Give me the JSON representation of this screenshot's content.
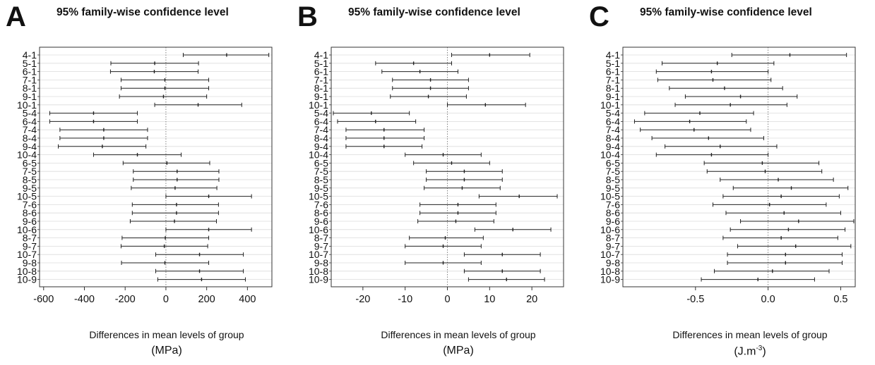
{
  "chart_data": [
    {
      "type": "interval",
      "panel_label": "A",
      "title": "95% family-wise confidence level",
      "xlabel": "Differences in mean levels of group",
      "xunit": "(MPa)",
      "xlim": [
        -620,
        520
      ],
      "xticks": [
        "-600",
        "-400",
        "-200",
        "0",
        "200",
        "400"
      ],
      "categories": [
        "4-1",
        "5-1",
        "6-1",
        "7-1",
        "8-1",
        "9-1",
        "10-1",
        "5-4",
        "6-4",
        "7-4",
        "8-4",
        "9-4",
        "10-4",
        "6-5",
        "7-5",
        "8-5",
        "9-5",
        "10-5",
        "7-6",
        "8-6",
        "9-6",
        "10-6",
        "8-7",
        "9-7",
        "10-7",
        "9-8",
        "10-8",
        "10-9"
      ],
      "lower": [
        85,
        -270,
        -272,
        -220,
        -220,
        -228,
        -55,
        -570,
        -570,
        -520,
        -520,
        -528,
        -355,
        -210,
        -160,
        -160,
        -170,
        0,
        -165,
        -165,
        -175,
        0,
        -215,
        -220,
        -50,
        -218,
        -50,
        -40
      ],
      "estimate": [
        298,
        -55,
        -57,
        -5,
        -5,
        -12,
        158,
        -355,
        -355,
        -305,
        -305,
        -312,
        -140,
        5,
        55,
        55,
        45,
        210,
        52,
        52,
        42,
        210,
        -3,
        -8,
        165,
        -5,
        165,
        175
      ],
      "upper": [
        505,
        160,
        158,
        210,
        210,
        200,
        372,
        -140,
        -140,
        -90,
        -90,
        -98,
        75,
        215,
        260,
        260,
        250,
        420,
        258,
        258,
        248,
        420,
        210,
        205,
        380,
        210,
        380,
        390
      ]
    },
    {
      "type": "interval",
      "panel_label": "B",
      "title": "95% family-wise confidence level",
      "xlabel": "Differences in mean levels of group",
      "xunit": "(MPa)",
      "xlim": [
        -27.5,
        27.5
      ],
      "xticks": [
        "-20",
        "-10",
        "0",
        "10",
        "20"
      ],
      "categories": [
        "4-1",
        "5-1",
        "6-1",
        "7-1",
        "8-1",
        "9-1",
        "10-1",
        "5-4",
        "6-4",
        "7-4",
        "8-4",
        "9-4",
        "10-4",
        "6-5",
        "7-5",
        "8-5",
        "9-5",
        "10-5",
        "7-6",
        "8-6",
        "9-6",
        "10-6",
        "8-7",
        "9-7",
        "10-7",
        "9-8",
        "10-8",
        "10-9"
      ],
      "lower": [
        1,
        -17,
        -15.5,
        -13,
        -13,
        -13.5,
        0,
        -27,
        -26,
        -24,
        -24,
        -24,
        -10,
        -8,
        -5,
        -5,
        -5.5,
        7.5,
        -6.5,
        -6.5,
        -7,
        6.5,
        -9,
        -10,
        4,
        -10,
        4,
        5
      ],
      "estimate": [
        10,
        -8,
        -6.5,
        -4,
        -4,
        -4.5,
        9,
        -18,
        -17,
        -15,
        -15,
        -15,
        -1,
        1,
        4,
        4,
        3.5,
        17,
        2.5,
        2.5,
        2,
        15.5,
        -0.5,
        -1,
        13,
        -1,
        13,
        14
      ],
      "upper": [
        19.5,
        1,
        2.5,
        5,
        5,
        4.5,
        18.5,
        -9,
        -7.5,
        -5.5,
        -5.5,
        -6,
        8,
        10,
        13,
        13,
        12.5,
        26,
        11.5,
        11.5,
        11,
        24.5,
        8.5,
        8,
        22,
        8,
        22,
        23
      ]
    },
    {
      "type": "interval",
      "panel_label": "C",
      "title": "95% family-wise confidence level",
      "xlabel": "Differences in mean levels of group",
      "xunit": "(J.m",
      "xunit_sup": "-3",
      "xunit_end": ")",
      "xlim": [
        -1.0,
        0.6
      ],
      "xticks": [
        "-0.5",
        "0.0",
        "0.5"
      ],
      "categories": [
        "4-1",
        "5-1",
        "6-1",
        "7-1",
        "8-1",
        "9-1",
        "10-1",
        "5-4",
        "6-4",
        "7-4",
        "8-4",
        "9-4",
        "10-4",
        "6-5",
        "7-5",
        "8-5",
        "9-5",
        "10-5",
        "7-6",
        "8-6",
        "9-6",
        "10-6",
        "8-7",
        "9-7",
        "10-7",
        "9-8",
        "10-8",
        "10-9"
      ],
      "lower": [
        -0.25,
        -0.73,
        -0.77,
        -0.76,
        -0.68,
        -0.57,
        -0.64,
        -0.85,
        -0.92,
        -0.88,
        -0.8,
        -0.71,
        -0.77,
        -0.44,
        -0.42,
        -0.33,
        -0.24,
        -0.31,
        -0.38,
        -0.29,
        -0.19,
        -0.26,
        -0.31,
        -0.21,
        -0.28,
        -0.28,
        -0.37,
        -0.46
      ],
      "estimate": [
        0.15,
        -0.35,
        -0.39,
        -0.38,
        -0.3,
        -0.19,
        -0.26,
        -0.47,
        -0.54,
        -0.51,
        -0.41,
        -0.33,
        -0.39,
        -0.04,
        -0.02,
        0.07,
        0.16,
        0.09,
        0.01,
        0.11,
        0.21,
        0.14,
        0.09,
        0.19,
        0.12,
        0.12,
        0.03,
        -0.07
      ],
      "upper": [
        0.54,
        0.04,
        0.0,
        0.02,
        0.1,
        0.2,
        0.13,
        -0.1,
        -0.15,
        -0.12,
        -0.03,
        0.06,
        0.0,
        0.35,
        0.37,
        0.45,
        0.55,
        0.49,
        0.4,
        0.5,
        0.59,
        0.53,
        0.48,
        0.57,
        0.51,
        0.51,
        0.42,
        0.32
      ]
    }
  ]
}
